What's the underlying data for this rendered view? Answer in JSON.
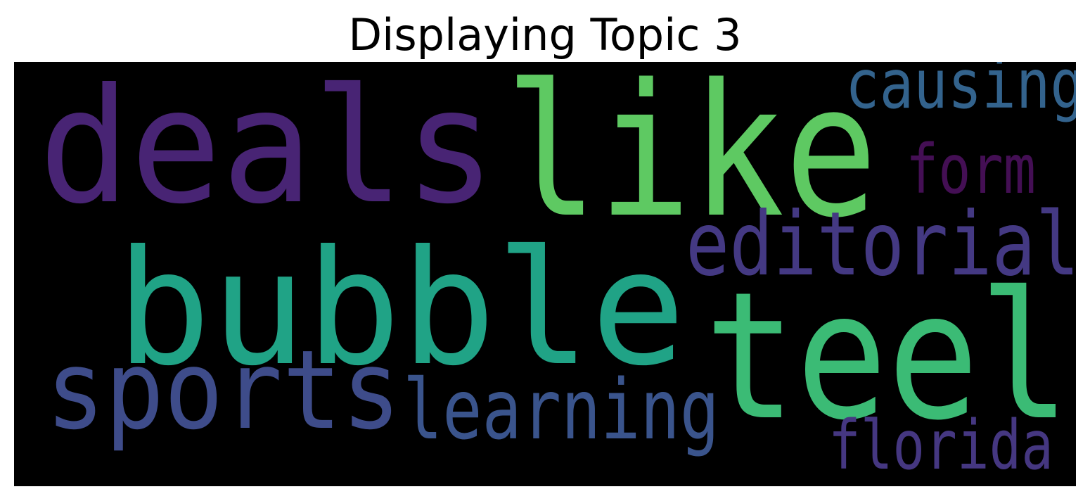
{
  "title": "Displaying Topic 3",
  "wordcloud": {
    "background": "#000000",
    "words": [
      {
        "text": "deals",
        "color": "#482474"
      },
      {
        "text": "like",
        "color": "#5ec962"
      },
      {
        "text": "bubble",
        "color": "#20a386"
      },
      {
        "text": "teel",
        "color": "#3bbb75"
      },
      {
        "text": "causing",
        "color": "#33638d"
      },
      {
        "text": "form",
        "color": "#440f54"
      },
      {
        "text": "editorial",
        "color": "#443983"
      },
      {
        "text": "sports",
        "color": "#3e4c8a"
      },
      {
        "text": "learning",
        "color": "#3a548c"
      },
      {
        "text": "florida",
        "color": "#453781"
      }
    ]
  }
}
